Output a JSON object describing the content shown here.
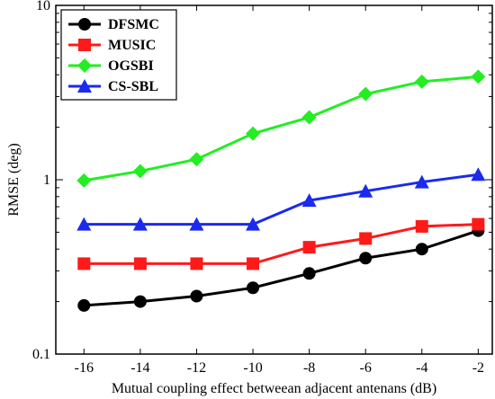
{
  "chart_data": {
    "type": "line",
    "title": "",
    "xlabel": "Mutual coupling effect betweean adjacent antenans (dB)",
    "ylabel": "RMSE (deg)",
    "x": [
      -16,
      -14,
      -12,
      -10,
      -8,
      -6,
      -4,
      -2
    ],
    "x_ticks": [
      -16,
      -14,
      -12,
      -10,
      -8,
      -6,
      -4,
      -2
    ],
    "xlim": [
      -17,
      -1.5
    ],
    "y_scale": "log",
    "ylim": [
      0.1,
      10
    ],
    "y_ticks": [
      0.1,
      1,
      10
    ],
    "y_tick_labels": [
      "0.1",
      "1",
      "10"
    ],
    "grid": false,
    "legend_position": "top-left",
    "series": [
      {
        "name": "DFSMC",
        "color": "#000000",
        "marker": "circle",
        "values": [
          0.19,
          0.2,
          0.215,
          0.24,
          0.29,
          0.355,
          0.4,
          0.51
        ]
      },
      {
        "name": "MUSIC",
        "color": "#ff1a1a",
        "marker": "square",
        "values": [
          0.33,
          0.33,
          0.33,
          0.33,
          0.41,
          0.46,
          0.54,
          0.555
        ]
      },
      {
        "name": "OGSBI",
        "color": "#22ee22",
        "marker": "diamond",
        "values": [
          0.99,
          1.12,
          1.31,
          1.84,
          2.28,
          3.1,
          3.65,
          3.9
        ]
      },
      {
        "name": "CS-SBL",
        "color": "#1a2aee",
        "marker": "triangle",
        "values": [
          0.555,
          0.555,
          0.555,
          0.555,
          0.76,
          0.86,
          0.97,
          1.07
        ]
      }
    ]
  }
}
